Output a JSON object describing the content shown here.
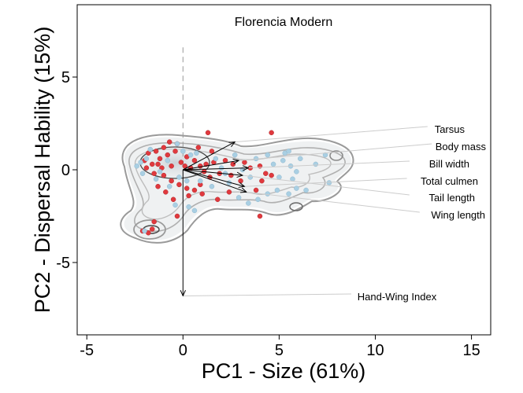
{
  "chart_data": {
    "type": "scatter",
    "title": "Florencia Modern",
    "xlabel": "PC1 - Size (61%)",
    "ylabel": "PC2 - Dispersal Hability (15%)",
    "xlim": [
      -5.5,
      16
    ],
    "ylim": [
      -8.9,
      8.9
    ],
    "xticks": [
      -5,
      0,
      5,
      10,
      15
    ],
    "yticks": [
      -5,
      0,
      5
    ],
    "xtick_labels": [
      "-5",
      "0",
      "5",
      "10",
      "15"
    ],
    "ytick_labels": [
      "-5",
      "0",
      "5"
    ],
    "grid": false,
    "colors": {
      "series_red": "#e0393e",
      "series_blue": "#a9cfe3",
      "contour": "#9a9a9a",
      "contour_inner": "#4a4a4a",
      "density_fill": "#d9dee2",
      "arrow": "#000000",
      "leader": "#cccccc"
    },
    "series": [
      {
        "color": "#e0393e",
        "points": [
          [
            4.6,
            2.0
          ],
          [
            1.3,
            2.0
          ],
          [
            1.5,
            1.0
          ],
          [
            0.8,
            1.2
          ],
          [
            -0.3,
            1.4
          ],
          [
            -0.7,
            1.5
          ],
          [
            -1.0,
            1.2
          ],
          [
            -1.4,
            1.0
          ],
          [
            -1.8,
            0.9
          ],
          [
            -2.0,
            0.5
          ],
          [
            -1.6,
            0.3
          ],
          [
            -1.2,
            0.6
          ],
          [
            -0.8,
            0.8
          ],
          [
            -0.4,
            1.0
          ],
          [
            0.2,
            0.7
          ],
          [
            0.6,
            0.5
          ],
          [
            0.9,
            0.2
          ],
          [
            1.2,
            0.3
          ],
          [
            1.6,
            0.4
          ],
          [
            2.2,
            0.5
          ],
          [
            2.6,
            0.3
          ],
          [
            3.2,
            0.4
          ],
          [
            3.5,
            0.1
          ],
          [
            4.0,
            0.2
          ],
          [
            4.3,
            -0.2
          ],
          [
            4.1,
            -0.6
          ],
          [
            4.6,
            -0.3
          ],
          [
            3.8,
            -1.1
          ],
          [
            3.0,
            -0.6
          ],
          [
            2.5,
            -0.3
          ],
          [
            1.9,
            -0.2
          ],
          [
            1.4,
            -0.4
          ],
          [
            0.9,
            -0.8
          ],
          [
            0.6,
            -1.1
          ],
          [
            0.2,
            -1.0
          ],
          [
            -0.2,
            -0.8
          ],
          [
            -0.6,
            -0.6
          ],
          [
            -1.0,
            -0.3
          ],
          [
            -1.5,
            -0.2
          ],
          [
            -1.9,
            0.1
          ],
          [
            -0.9,
            -1.2
          ],
          [
            -1.3,
            -0.9
          ],
          [
            -0.5,
            -1.6
          ],
          [
            0.3,
            -1.4
          ],
          [
            1.0,
            -1.3
          ],
          [
            1.8,
            -1.6
          ],
          [
            2.4,
            -1.2
          ],
          [
            -1.5,
            -2.8
          ],
          [
            -1.6,
            -3.2
          ],
          [
            -1.8,
            -3.4
          ],
          [
            -2.1,
            -3.3
          ],
          [
            -0.3,
            -2.5
          ],
          [
            4.0,
            -2.5
          ],
          [
            0.1,
            0.2
          ],
          [
            -0.1,
            0.4
          ],
          [
            0.4,
            0.1
          ],
          [
            -0.6,
            0.2
          ],
          [
            -1.1,
            0.1
          ],
          [
            -1.3,
            0.3
          ],
          [
            1.1,
            -0.1
          ]
        ]
      },
      {
        "color": "#a9cfe3",
        "points": [
          [
            5.3,
            0.9
          ],
          [
            5.5,
            1.0
          ],
          [
            5.2,
            0.5
          ],
          [
            5.6,
            0.2
          ],
          [
            5.9,
            -0.1
          ],
          [
            5.7,
            -0.5
          ],
          [
            5.9,
            -1.0
          ],
          [
            5.5,
            -1.3
          ],
          [
            4.9,
            -1.1
          ],
          [
            4.4,
            -1.3
          ],
          [
            3.9,
            -1.6
          ],
          [
            3.4,
            -1.8
          ],
          [
            2.9,
            -1.5
          ],
          [
            2.4,
            -0.7
          ],
          [
            2.0,
            0.1
          ],
          [
            1.7,
            0.6
          ],
          [
            3.8,
            0.6
          ],
          [
            4.4,
            0.8
          ],
          [
            5.0,
            -0.4
          ],
          [
            7.4,
            0.8
          ],
          [
            7.6,
            -0.7
          ],
          [
            6.4,
            -1.1
          ],
          [
            -2.2,
            0.4
          ],
          [
            -2.4,
            0.2
          ],
          [
            -2.1,
            -0.2
          ],
          [
            -1.9,
            0.6
          ],
          [
            -1.4,
            -0.5
          ],
          [
            -0.7,
            -0.9
          ],
          [
            -0.4,
            -1.9
          ],
          [
            0.3,
            -2.0
          ],
          [
            0.6,
            -2.2
          ],
          [
            -2.0,
            -3.3
          ],
          [
            -0.3,
            1.4
          ],
          [
            0.0,
            1.0
          ],
          [
            0.4,
            0.8
          ],
          [
            -1.7,
            1.1
          ],
          [
            -1.2,
            -0.1
          ],
          [
            -0.8,
            0.5
          ],
          [
            0.7,
            0.9
          ],
          [
            0.9,
            -0.6
          ],
          [
            1.5,
            -0.9
          ],
          [
            2.2,
            -0.2
          ],
          [
            3.1,
            0.0
          ],
          [
            3.5,
            -0.4
          ],
          [
            4.7,
            0.3
          ],
          [
            6.1,
            0.6
          ],
          [
            6.9,
            0.3
          ],
          [
            2.7,
            0.8
          ],
          [
            -0.2,
            -0.4
          ],
          [
            0.2,
            -0.6
          ]
        ]
      }
    ],
    "vectors": [
      {
        "label": "Tarsus",
        "x": 2.7,
        "y": 1.5
      },
      {
        "label": "Body mass",
        "x": 2.9,
        "y": 0.5
      },
      {
        "label": "Bill width",
        "x": 3.4,
        "y": 0.1
      },
      {
        "label": "Total culmen",
        "x": 3.2,
        "y": -0.9
      },
      {
        "label": "Tail length",
        "x": 3.1,
        "y": -0.3
      },
      {
        "label": "Wing length",
        "x": 3.3,
        "y": -1.2
      },
      {
        "label": "Hand-Wing Index",
        "x": 0.0,
        "y": -6.8
      }
    ]
  }
}
